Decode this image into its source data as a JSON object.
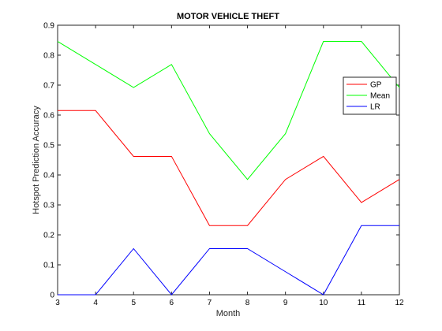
{
  "chart_data": {
    "type": "line",
    "title": "MOTOR VEHICLE THEFT",
    "xlabel": "Month",
    "ylabel": "Hotspot Prediction Accuracy",
    "x": [
      3,
      4,
      5,
      6,
      7,
      8,
      9,
      10,
      11,
      12
    ],
    "xlim": [
      3,
      12
    ],
    "ylim": [
      0,
      0.9
    ],
    "xticks": [
      3,
      4,
      5,
      6,
      7,
      8,
      9,
      10,
      11,
      12
    ],
    "yticks": [
      0,
      0.1,
      0.2,
      0.3,
      0.4,
      0.5,
      0.6,
      0.7,
      0.8,
      0.9
    ],
    "grid": false,
    "legend_position": "top-right",
    "series": [
      {
        "name": "GP",
        "color": "#ff0000",
        "values": [
          0.615,
          0.615,
          0.462,
          0.462,
          0.231,
          0.231,
          0.385,
          0.462,
          0.308,
          0.385
        ]
      },
      {
        "name": "Mean",
        "color": "#00ff00",
        "values": [
          0.846,
          0.769,
          0.692,
          0.769,
          0.538,
          0.385,
          0.538,
          0.846,
          0.846,
          0.692
        ]
      },
      {
        "name": "LR",
        "color": "#0000ff",
        "values": [
          0.0,
          0.0,
          0.154,
          0.0,
          0.154,
          0.154,
          0.077,
          0.0,
          0.231,
          0.231
        ]
      }
    ]
  }
}
